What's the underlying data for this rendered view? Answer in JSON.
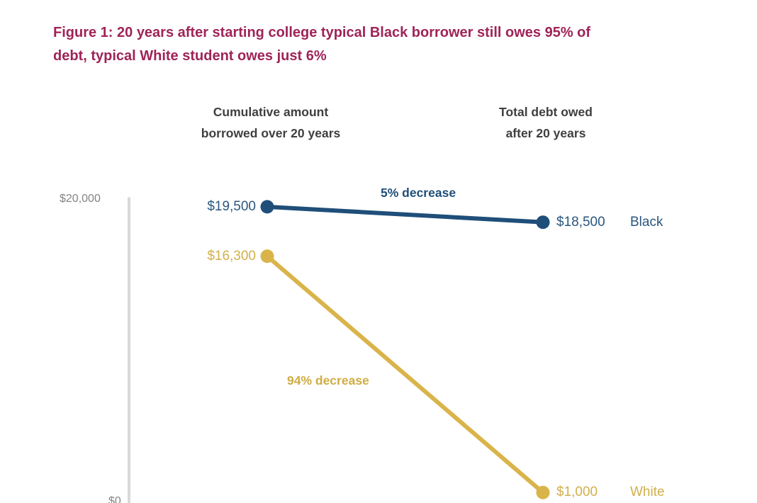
{
  "title": "Figure 1: 20 years after starting college typical Black borrower still owes 95% of\ndebt, typical White student owes just 6%",
  "title_color": "#9E2358",
  "columns": {
    "left": "Cumulative amount\nborrowed  over 20 years",
    "right": "Total debt owed\nafter 20 years"
  },
  "axis": {
    "top_label": "$20,000",
    "bottom_label": "$0",
    "line_color": "#D9D9D9",
    "label_color": "#848484"
  },
  "chart_data": {
    "type": "line",
    "title": "Figure 1: 20 years after starting college typical Black borrower still owes 95% of debt, typical White student owes just 6%",
    "categories": [
      "Cumulative amount borrowed over 20 years",
      "Total debt owed after 20 years"
    ],
    "series": [
      {
        "name": "Black",
        "values": [
          19500,
          18500
        ],
        "labels": [
          "$19,500",
          "$18,500"
        ],
        "color": "#1F4E79",
        "annotation": "5% decrease"
      },
      {
        "name": "White",
        "values": [
          16300,
          1000
        ],
        "labels": [
          "$16,300",
          "$1,000"
        ],
        "color": "#D9B44A",
        "annotation": "94% decrease"
      }
    ],
    "ylim": [
      0,
      20000
    ],
    "y_ticks": [
      "$0",
      "$20,000"
    ],
    "grid": false,
    "legend_position": "right-of-end-points"
  }
}
